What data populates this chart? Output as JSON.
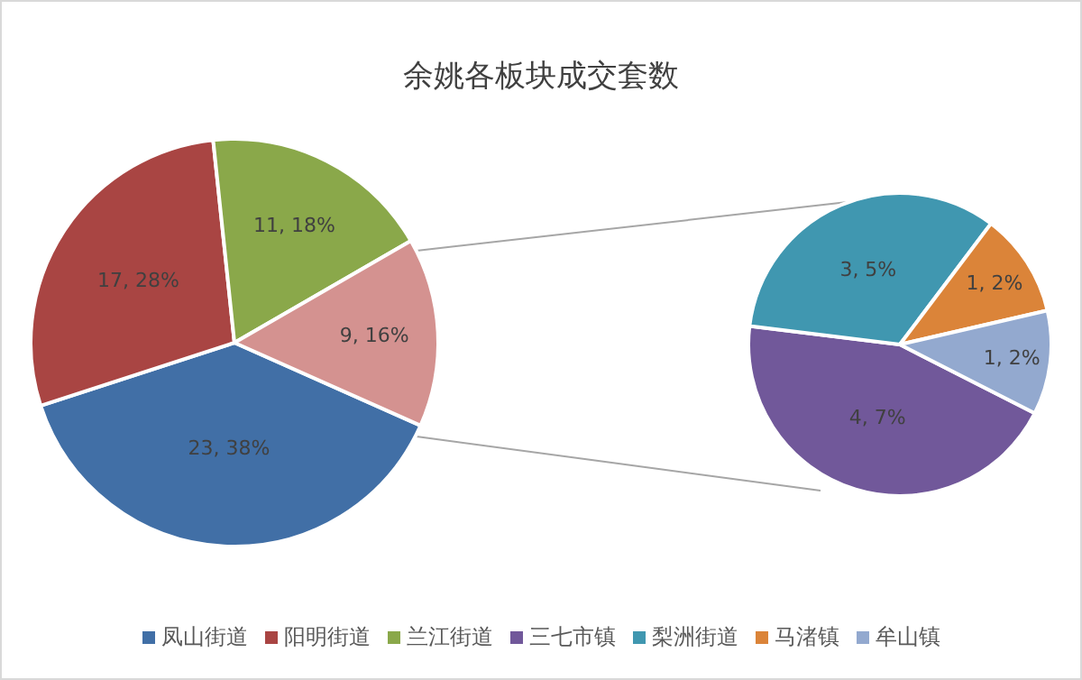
{
  "chart_data": [
    {
      "type": "pie",
      "title": "余姚各板块成交套数",
      "categories": [
        "凤山街道",
        "阳明街道",
        "兰江街道",
        null
      ],
      "values": [
        23,
        17,
        11,
        9
      ],
      "colors": [
        "#416fa6",
        "#a94543",
        "#8aa84a",
        "#d49290"
      ],
      "value_labels": [
        "23, 38%",
        "17, 28%",
        "11, 18%",
        "9, 16%"
      ],
      "legend": "bottom"
    },
    {
      "type": "pie",
      "categories": [
        "三七市镇",
        "梨洲街道",
        "马渚镇",
        "牟山镇"
      ],
      "values": [
        4,
        3,
        1,
        1
      ],
      "colors": [
        "#71589a",
        "#4097b0",
        "#db8439",
        "#93a9cf"
      ],
      "value_labels": [
        "4, 7%",
        "3, 5%",
        "1, 2%",
        "1, 2%"
      ],
      "legend": "bottom"
    }
  ]
}
